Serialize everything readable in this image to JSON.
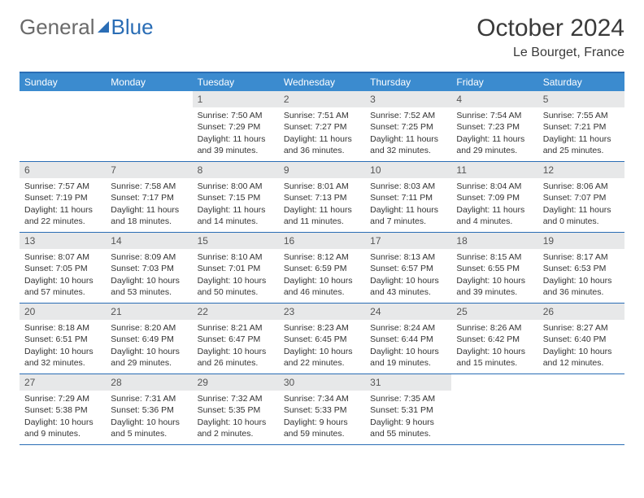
{
  "brand": {
    "general": "General",
    "blue": "Blue"
  },
  "title": {
    "month": "October 2024",
    "location": "Le Bourget, France"
  },
  "colors": {
    "header_bar": "#3b8bcf",
    "rule": "#2a6db5",
    "daynum_bg": "#e7e8e9",
    "text": "#333333",
    "background": "#ffffff"
  },
  "days_of_week": [
    "Sunday",
    "Monday",
    "Tuesday",
    "Wednesday",
    "Thursday",
    "Friday",
    "Saturday"
  ],
  "first_weekday_index": 2,
  "cells": [
    {
      "n": 1,
      "sr": "7:50 AM",
      "ss": "7:29 PM",
      "dh": 11,
      "dm": 39
    },
    {
      "n": 2,
      "sr": "7:51 AM",
      "ss": "7:27 PM",
      "dh": 11,
      "dm": 36
    },
    {
      "n": 3,
      "sr": "7:52 AM",
      "ss": "7:25 PM",
      "dh": 11,
      "dm": 32
    },
    {
      "n": 4,
      "sr": "7:54 AM",
      "ss": "7:23 PM",
      "dh": 11,
      "dm": 29
    },
    {
      "n": 5,
      "sr": "7:55 AM",
      "ss": "7:21 PM",
      "dh": 11,
      "dm": 25
    },
    {
      "n": 6,
      "sr": "7:57 AM",
      "ss": "7:19 PM",
      "dh": 11,
      "dm": 22
    },
    {
      "n": 7,
      "sr": "7:58 AM",
      "ss": "7:17 PM",
      "dh": 11,
      "dm": 18
    },
    {
      "n": 8,
      "sr": "8:00 AM",
      "ss": "7:15 PM",
      "dh": 11,
      "dm": 14
    },
    {
      "n": 9,
      "sr": "8:01 AM",
      "ss": "7:13 PM",
      "dh": 11,
      "dm": 11
    },
    {
      "n": 10,
      "sr": "8:03 AM",
      "ss": "7:11 PM",
      "dh": 11,
      "dm": 7
    },
    {
      "n": 11,
      "sr": "8:04 AM",
      "ss": "7:09 PM",
      "dh": 11,
      "dm": 4
    },
    {
      "n": 12,
      "sr": "8:06 AM",
      "ss": "7:07 PM",
      "dh": 11,
      "dm": 0
    },
    {
      "n": 13,
      "sr": "8:07 AM",
      "ss": "7:05 PM",
      "dh": 10,
      "dm": 57
    },
    {
      "n": 14,
      "sr": "8:09 AM",
      "ss": "7:03 PM",
      "dh": 10,
      "dm": 53
    },
    {
      "n": 15,
      "sr": "8:10 AM",
      "ss": "7:01 PM",
      "dh": 10,
      "dm": 50
    },
    {
      "n": 16,
      "sr": "8:12 AM",
      "ss": "6:59 PM",
      "dh": 10,
      "dm": 46
    },
    {
      "n": 17,
      "sr": "8:13 AM",
      "ss": "6:57 PM",
      "dh": 10,
      "dm": 43
    },
    {
      "n": 18,
      "sr": "8:15 AM",
      "ss": "6:55 PM",
      "dh": 10,
      "dm": 39
    },
    {
      "n": 19,
      "sr": "8:17 AM",
      "ss": "6:53 PM",
      "dh": 10,
      "dm": 36
    },
    {
      "n": 20,
      "sr": "8:18 AM",
      "ss": "6:51 PM",
      "dh": 10,
      "dm": 32
    },
    {
      "n": 21,
      "sr": "8:20 AM",
      "ss": "6:49 PM",
      "dh": 10,
      "dm": 29
    },
    {
      "n": 22,
      "sr": "8:21 AM",
      "ss": "6:47 PM",
      "dh": 10,
      "dm": 26
    },
    {
      "n": 23,
      "sr": "8:23 AM",
      "ss": "6:45 PM",
      "dh": 10,
      "dm": 22
    },
    {
      "n": 24,
      "sr": "8:24 AM",
      "ss": "6:44 PM",
      "dh": 10,
      "dm": 19
    },
    {
      "n": 25,
      "sr": "8:26 AM",
      "ss": "6:42 PM",
      "dh": 10,
      "dm": 15
    },
    {
      "n": 26,
      "sr": "8:27 AM",
      "ss": "6:40 PM",
      "dh": 10,
      "dm": 12
    },
    {
      "n": 27,
      "sr": "7:29 AM",
      "ss": "5:38 PM",
      "dh": 10,
      "dm": 9
    },
    {
      "n": 28,
      "sr": "7:31 AM",
      "ss": "5:36 PM",
      "dh": 10,
      "dm": 5
    },
    {
      "n": 29,
      "sr": "7:32 AM",
      "ss": "5:35 PM",
      "dh": 10,
      "dm": 2
    },
    {
      "n": 30,
      "sr": "7:34 AM",
      "ss": "5:33 PM",
      "dh": 9,
      "dm": 59
    },
    {
      "n": 31,
      "sr": "7:35 AM",
      "ss": "5:31 PM",
      "dh": 9,
      "dm": 55
    }
  ],
  "labels": {
    "sunrise": "Sunrise:",
    "sunset": "Sunset:",
    "daylight": "Daylight:",
    "hours": "hours",
    "and": "and",
    "minutes": "minutes."
  }
}
